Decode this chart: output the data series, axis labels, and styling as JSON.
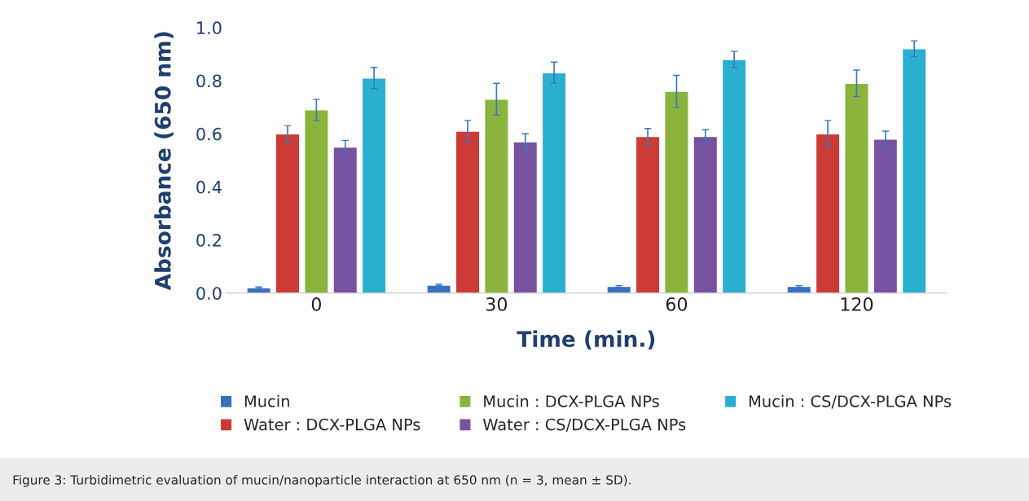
{
  "chart_data": {
    "type": "bar",
    "xlabel": "Time (min.)",
    "ylabel": "Absorbance (650 nm)",
    "categories": [
      "0",
      "30",
      "60",
      "120"
    ],
    "series": [
      {
        "name": "Mucin",
        "color": "#3b6fc2",
        "values": [
          0.02,
          0.03,
          0.025,
          0.025
        ],
        "errors": [
          0.003,
          0.003,
          0.003,
          0.003
        ]
      },
      {
        "name": "Water : DCX-PLGA NPs",
        "color": "#cc3b35",
        "values": [
          0.6,
          0.61,
          0.59,
          0.6
        ],
        "errors": [
          0.03,
          0.04,
          0.03,
          0.05
        ]
      },
      {
        "name": "Mucin : DCX-PLGA NPs",
        "color": "#8ab43c",
        "values": [
          0.69,
          0.73,
          0.76,
          0.79
        ],
        "errors": [
          0.04,
          0.06,
          0.06,
          0.05
        ]
      },
      {
        "name": "Water : CS/DCX-PLGA NPs",
        "color": "#7752a0",
        "values": [
          0.55,
          0.57,
          0.59,
          0.58
        ],
        "errors": [
          0.025,
          0.03,
          0.025,
          0.03
        ]
      },
      {
        "name": "Mucin : CS/DCX-PLGA NPs",
        "color": "#2ab0cf",
        "values": [
          0.81,
          0.83,
          0.88,
          0.92
        ],
        "errors": [
          0.04,
          0.04,
          0.03,
          0.03
        ]
      }
    ],
    "ylim": [
      0,
      1.0
    ],
    "yticks": [
      {
        "value": 0,
        "label": "0.0"
      },
      {
        "value": 0.2,
        "label": "0.2"
      },
      {
        "value": 0.4,
        "label": "0.4"
      },
      {
        "value": 0.6,
        "label": "0.6"
      },
      {
        "value": 0.8,
        "label": "0.8"
      },
      {
        "value": 1.0,
        "label": "1.0"
      }
    ],
    "grid": false,
    "legend": "bottom",
    "annotations": [
      "Figure 3: Turbidimetric evaluation of mucin/nanoparticle interaction at 650 nm (n = 3, mean ± SD)."
    ]
  }
}
